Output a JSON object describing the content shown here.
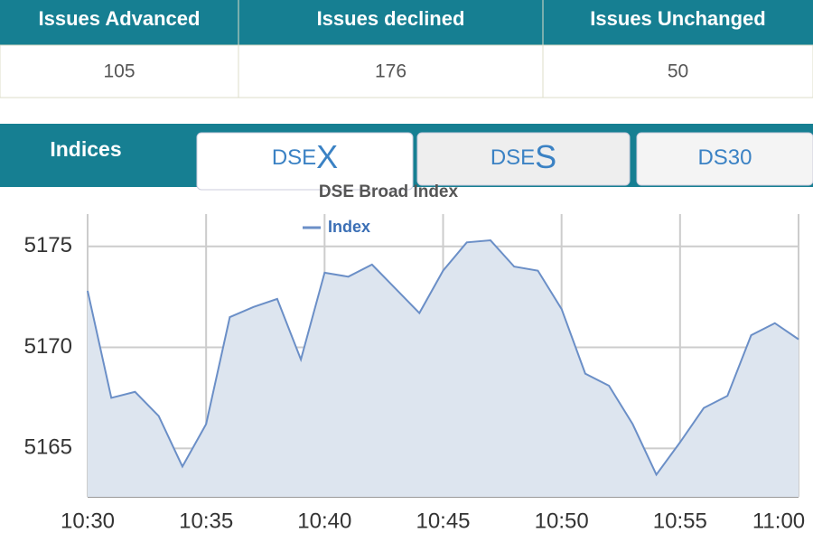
{
  "stats": {
    "headers": [
      "Issues Advanced",
      "Issues declined",
      "Issues Unchanged"
    ],
    "values": [
      105,
      176,
      50
    ]
  },
  "tabs": {
    "label": "Indices",
    "items": [
      {
        "prefix": "DSE",
        "suffix": "X"
      },
      {
        "prefix": "DSE",
        "suffix": "S"
      },
      {
        "prefix": "DS30",
        "suffix": ""
      }
    ]
  },
  "chart_data": {
    "type": "line",
    "title": "DSE Broad Index",
    "categories": [
      "10:30",
      null,
      null,
      null,
      null,
      "10:35",
      null,
      null,
      null,
      null,
      "10:40",
      null,
      null,
      null,
      null,
      "10:45",
      null,
      null,
      null,
      null,
      "10:50",
      null,
      null,
      null,
      null,
      "10:55",
      null,
      null,
      null,
      null,
      "11:00"
    ],
    "series": [
      {
        "name": "Index",
        "color": "#6b8fc7",
        "values": [
          5172.8,
          5167.5,
          5167.8,
          5166.6,
          5164.1,
          5166.2,
          5171.5,
          5172.0,
          5172.4,
          5169.4,
          5173.7,
          5173.5,
          5174.1,
          5172.9,
          5171.7,
          5173.8,
          5175.2,
          5175.3,
          5174.0,
          5173.8,
          5171.9,
          5168.7,
          5168.1,
          5166.2,
          5163.7,
          5165.3,
          5167.0,
          5167.6,
          5170.6,
          5171.2,
          5170.4
        ]
      }
    ],
    "ylim": [
      5162.6,
      5176.6
    ],
    "yticks": [
      5165,
      5170,
      5175
    ],
    "grid": true,
    "area": true
  }
}
